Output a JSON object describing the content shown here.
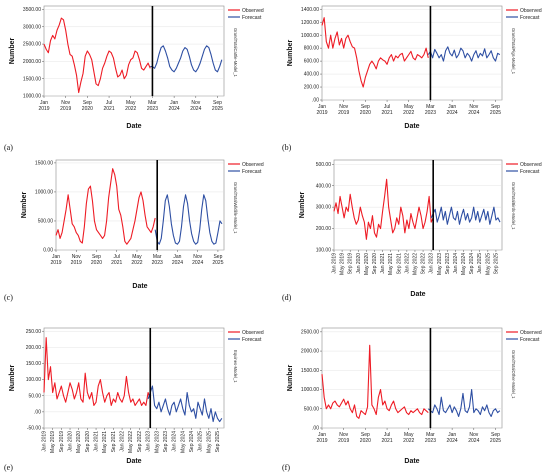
{
  "chart_data": [
    {
      "panel_label": "(a)",
      "type": "line",
      "xlabel": "Date",
      "ylabel": "Number",
      "model_label": "GrandTotalCattle-Model_1",
      "x_range": [
        "2019-01",
        "2025-12"
      ],
      "forecast_start": "2023-03",
      "x_ticks": [
        {
          "at": "2019-01",
          "label": "Jan 2019"
        },
        {
          "at": "2019-11",
          "label": "Nov 2019"
        },
        {
          "at": "2020-09",
          "label": "Sep 2020"
        },
        {
          "at": "2021-07",
          "label": "Jul 2021"
        },
        {
          "at": "2022-05",
          "label": "May 2022"
        },
        {
          "at": "2023-03",
          "label": "Mar 2023"
        },
        {
          "at": "2024-01",
          "label": "Jan 2024"
        },
        {
          "at": "2024-11",
          "label": "Nov 2024"
        },
        {
          "at": "2025-09",
          "label": "Sep 2025"
        }
      ],
      "xtick_rotated": false,
      "ylim": [
        1000,
        3600
      ],
      "y_ticks": [
        "1000.00",
        "1500.00",
        "2000.00",
        "2500.00",
        "3000.00",
        "3500.00"
      ],
      "series": [
        {
          "name": "Observed",
          "color": "#ee1c25",
          "start": "2019-01",
          "values": [
            2500,
            2350,
            2250,
            2600,
            2750,
            2650,
            2900,
            3050,
            3250,
            3200,
            2900,
            2500,
            2200,
            2150,
            1900,
            1600,
            1100,
            1400,
            1650,
            2150,
            2300,
            2200,
            2050,
            1700,
            1350,
            1300,
            1500,
            1800,
            1950,
            2150,
            2300,
            2250,
            2100,
            1800,
            1550,
            1600,
            1750,
            1500,
            1600,
            1900,
            2050,
            2100,
            2300,
            2250,
            2050,
            1800,
            1750,
            1850,
            1950,
            1800
          ]
        },
        {
          "name": "Forecast",
          "color": "#2e4fa3",
          "start": "2023-02",
          "values": [
            1850,
            1850,
            1800,
            1950,
            2200,
            2400,
            2450,
            2300,
            2100,
            1850,
            1750,
            1700,
            1800,
            1950,
            2100,
            2300,
            2400,
            2350,
            2150,
            1900,
            1750,
            1700,
            1800,
            1950,
            2150,
            2350,
            2450,
            2400,
            2200,
            1950,
            1750,
            1700,
            1850,
            2050
          ]
        }
      ]
    },
    {
      "panel_label": "(b)",
      "type": "line",
      "xlabel": "Date",
      "ylabel": "Number",
      "model_label": "GrandTotalPigs-Model_1",
      "x_range": [
        "2019-01",
        "2025-12"
      ],
      "forecast_start": "2023-03",
      "x_ticks": [
        {
          "at": "2019-01",
          "label": "Jan 2019"
        },
        {
          "at": "2019-11",
          "label": "Nov 2019"
        },
        {
          "at": "2020-09",
          "label": "Sep 2020"
        },
        {
          "at": "2021-07",
          "label": "Jul 2021"
        },
        {
          "at": "2022-05",
          "label": "May 2022"
        },
        {
          "at": "2023-03",
          "label": "Mar 2023"
        },
        {
          "at": "2024-01",
          "label": "Jan 2024"
        },
        {
          "at": "2024-11",
          "label": "Nov 2024"
        },
        {
          "at": "2025-09",
          "label": "Sep 2025"
        }
      ],
      "xtick_rotated": false,
      "ylim": [
        0,
        1450
      ],
      "y_ticks": [
        ".00",
        "200.00",
        "400.00",
        "600.00",
        "800.00",
        "1000.00",
        "1200.00",
        "1400.00"
      ],
      "series": [
        {
          "name": "Observed",
          "color": "#ee1c25",
          "start": "2019-01",
          "values": [
            1150,
            1270,
            900,
            800,
            1000,
            800,
            950,
            1050,
            850,
            950,
            800,
            950,
            1000,
            900,
            820,
            800,
            650,
            450,
            300,
            200,
            350,
            450,
            550,
            600,
            550,
            480,
            600,
            650,
            620,
            600,
            550,
            650,
            700,
            600,
            680,
            650,
            700,
            720,
            600,
            650,
            700,
            750,
            650,
            620,
            700,
            680,
            650,
            700,
            800,
            650
          ]
        },
        {
          "name": "Forecast",
          "color": "#2e4fa3",
          "start": "2023-02",
          "values": [
            700,
            750,
            650,
            780,
            720,
            650,
            700,
            600,
            760,
            820,
            720,
            680,
            770,
            650,
            700,
            800,
            760,
            650,
            720,
            680,
            600,
            700,
            760,
            650,
            720,
            680,
            790,
            650,
            700,
            760,
            650,
            600,
            720,
            700
          ]
        }
      ]
    },
    {
      "panel_label": "(c)",
      "type": "line",
      "xlabel": "Date",
      "ylabel": "Number",
      "model_label": "GrandTotalWildlife-Model_1",
      "x_range": [
        "2019-01",
        "2025-12"
      ],
      "forecast_start": "2023-03",
      "x_ticks": [
        {
          "at": "2019-01",
          "label": "Jan 2019"
        },
        {
          "at": "2019-11",
          "label": "Nov 2019"
        },
        {
          "at": "2020-09",
          "label": "Sep 2020"
        },
        {
          "at": "2021-07",
          "label": "Jul 2021"
        },
        {
          "at": "2022-05",
          "label": "May 2022"
        },
        {
          "at": "2023-03",
          "label": "Mar 2023"
        },
        {
          "at": "2024-01",
          "label": "Jan 2024"
        },
        {
          "at": "2024-11",
          "label": "Nov 2024"
        },
        {
          "at": "2025-09",
          "label": "Sep 2025"
        }
      ],
      "xtick_rotated": false,
      "ylim": [
        0,
        1550
      ],
      "y_ticks": [
        "0.00",
        "500.00",
        "1000.00",
        "1500.00"
      ],
      "series": [
        {
          "name": "Observed",
          "color": "#ee1c25",
          "start": "2019-01",
          "values": [
            250,
            350,
            200,
            300,
            500,
            700,
            950,
            700,
            450,
            400,
            300,
            250,
            150,
            120,
            400,
            800,
            1050,
            1100,
            850,
            500,
            350,
            300,
            250,
            200,
            250,
            500,
            900,
            1150,
            1400,
            1300,
            1100,
            700,
            600,
            400,
            150,
            100,
            150,
            200,
            350,
            500,
            700,
            900,
            1000,
            850,
            600,
            400,
            350,
            300,
            400,
            550
          ]
        },
        {
          "name": "Forecast",
          "color": "#2e4fa3",
          "start": "2023-02",
          "values": [
            350,
            150,
            100,
            200,
            500,
            850,
            950,
            750,
            450,
            250,
            120,
            100,
            150,
            400,
            750,
            950,
            800,
            500,
            280,
            150,
            100,
            130,
            350,
            700,
            950,
            850,
            550,
            300,
            150,
            100,
            120,
            300,
            500,
            450
          ]
        }
      ]
    },
    {
      "panel_label": "(d)",
      "type": "line",
      "xlabel": "Date",
      "ylabel": "Number",
      "model_label": "GrandTotalBirds-Model_1",
      "x_range": [
        "2019-01",
        "2025-12"
      ],
      "forecast_start": "2023-02",
      "x_ticks": [
        {
          "at": "2019-01",
          "label": "Jan 2019"
        },
        {
          "at": "2019-05",
          "label": "May 2019"
        },
        {
          "at": "2019-09",
          "label": "Sep 2019"
        },
        {
          "at": "2020-01",
          "label": "Jan 2020"
        },
        {
          "at": "2020-05",
          "label": "May 2020"
        },
        {
          "at": "2020-09",
          "label": "Sep 2020"
        },
        {
          "at": "2021-01",
          "label": "Jan 2021"
        },
        {
          "at": "2021-05",
          "label": "May 2021"
        },
        {
          "at": "2021-09",
          "label": "Sep 2021"
        },
        {
          "at": "2022-01",
          "label": "Jan 2022"
        },
        {
          "at": "2022-05",
          "label": "May 2022"
        },
        {
          "at": "2022-09",
          "label": "Sep 2022"
        },
        {
          "at": "2023-01",
          "label": "Jan 2023"
        },
        {
          "at": "2023-05",
          "label": "May 2023"
        },
        {
          "at": "2023-09",
          "label": "Sep 2023"
        },
        {
          "at": "2024-01",
          "label": "Jan 2024"
        },
        {
          "at": "2024-05",
          "label": "May 2024"
        },
        {
          "at": "2024-09",
          "label": "Sep 2024"
        },
        {
          "at": "2025-01",
          "label": "Jan 2025"
        },
        {
          "at": "2025-05",
          "label": "May 2025"
        },
        {
          "at": "2025-09",
          "label": "Sep 2025"
        }
      ],
      "xtick_rotated": true,
      "ylim": [
        100,
        520
      ],
      "y_ticks": [
        "100.00",
        "200.00",
        "300.00",
        "400.00",
        "500.00"
      ],
      "series": [
        {
          "name": "Observed",
          "color": "#ee1c25",
          "start": "2019-01",
          "values": [
            280,
            320,
            270,
            350,
            300,
            250,
            300,
            280,
            360,
            300,
            250,
            220,
            240,
            300,
            260,
            230,
            150,
            230,
            200,
            260,
            180,
            160,
            220,
            200,
            280,
            350,
            430,
            300,
            240,
            180,
            200,
            250,
            220,
            300,
            260,
            180,
            240,
            200,
            270,
            230,
            200,
            250,
            300,
            260,
            200,
            230,
            280,
            350,
            230,
            250
          ]
        },
        {
          "name": "Forecast",
          "color": "#2e4fa3",
          "start": "2023-01",
          "values": [
            250,
            270,
            290,
            230,
            260,
            300,
            240,
            280,
            220,
            260,
            300,
            250,
            240,
            280,
            220,
            260,
            290,
            240,
            270,
            230,
            250,
            300,
            240,
            280,
            230,
            260,
            290,
            240,
            280,
            220,
            260,
            300,
            240,
            250,
            230
          ]
        }
      ]
    },
    {
      "panel_label": "(e)",
      "type": "line",
      "xlabel": "Date",
      "ylabel": "Number",
      "model_label": "Equines-Model_1",
      "x_range": [
        "2019-01",
        "2025-12"
      ],
      "forecast_start": "2023-02",
      "x_ticks": [
        {
          "at": "2019-01",
          "label": "Jan 2019"
        },
        {
          "at": "2019-05",
          "label": "May 2019"
        },
        {
          "at": "2019-09",
          "label": "Sep 2019"
        },
        {
          "at": "2020-01",
          "label": "Jan 2020"
        },
        {
          "at": "2020-05",
          "label": "May 2020"
        },
        {
          "at": "2020-09",
          "label": "Sep 2020"
        },
        {
          "at": "2021-01",
          "label": "Jan 2021"
        },
        {
          "at": "2021-05",
          "label": "May 2021"
        },
        {
          "at": "2021-09",
          "label": "Sep 2021"
        },
        {
          "at": "2022-01",
          "label": "Jan 2022"
        },
        {
          "at": "2022-05",
          "label": "May 2022"
        },
        {
          "at": "2022-09",
          "label": "Sep 2022"
        },
        {
          "at": "2023-01",
          "label": "Jan 2023"
        },
        {
          "at": "2023-05",
          "label": "May 2023"
        },
        {
          "at": "2023-09",
          "label": "Sep 2023"
        },
        {
          "at": "2024-01",
          "label": "Jan 2024"
        },
        {
          "at": "2024-05",
          "label": "May 2024"
        },
        {
          "at": "2024-09",
          "label": "Sep 2024"
        },
        {
          "at": "2025-01",
          "label": "Jan 2025"
        },
        {
          "at": "2025-05",
          "label": "May 2025"
        },
        {
          "at": "2025-09",
          "label": "Sep 2025"
        }
      ],
      "xtick_rotated": true,
      "ylim": [
        -50,
        260
      ],
      "y_ticks": [
        "-50.00",
        ".00",
        "50.00",
        "100.00",
        "150.00",
        "200.00",
        "250.00"
      ],
      "series": [
        {
          "name": "Observed",
          "color": "#ee1c25",
          "start": "2019-01",
          "values": [
            60,
            230,
            100,
            140,
            60,
            90,
            40,
            60,
            80,
            50,
            30,
            60,
            90,
            70,
            40,
            60,
            90,
            40,
            30,
            120,
            60,
            40,
            60,
            20,
            30,
            80,
            100,
            60,
            30,
            50,
            60,
            20,
            40,
            30,
            60,
            40,
            30,
            50,
            110,
            60,
            30,
            40,
            20,
            30,
            40,
            20,
            30,
            20,
            60,
            40
          ]
        },
        {
          "name": "Forecast",
          "color": "#2e4fa3",
          "start": "2023-01",
          "values": [
            40,
            60,
            80,
            20,
            10,
            30,
            0,
            20,
            40,
            10,
            -10,
            20,
            30,
            0,
            20,
            40,
            10,
            -10,
            60,
            20,
            0,
            10,
            -20,
            30,
            10,
            -10,
            40,
            0,
            -20,
            10,
            -30,
            0,
            -20,
            -30,
            -20
          ]
        }
      ]
    },
    {
      "panel_label": "(f)",
      "type": "line",
      "xlabel": "Date",
      "ylabel": "Number",
      "model_label": "GrandTotalOther-Model_1",
      "x_range": [
        "2019-01",
        "2025-12"
      ],
      "forecast_start": "2023-03",
      "x_ticks": [
        {
          "at": "2019-01",
          "label": "Jan 2019"
        },
        {
          "at": "2019-11",
          "label": "Nov 2019"
        },
        {
          "at": "2020-09",
          "label": "Sep 2020"
        },
        {
          "at": "2021-07",
          "label": "Jul 2021"
        },
        {
          "at": "2022-05",
          "label": "May 2022"
        },
        {
          "at": "2023-03",
          "label": "Mar 2023"
        },
        {
          "at": "2024-01",
          "label": "Jan 2024"
        },
        {
          "at": "2024-11",
          "label": "Nov 2024"
        },
        {
          "at": "2025-09",
          "label": "Sep 2025"
        }
      ],
      "xtick_rotated": false,
      "ylim": [
        0,
        2600
      ],
      "y_ticks": [
        ".00",
        "500.00",
        "1000.00",
        "1500.00",
        "2000.00",
        "2500.00"
      ],
      "series": [
        {
          "name": "Observed",
          "color": "#ee1c25",
          "start": "2019-01",
          "values": [
            1400,
            800,
            500,
            600,
            500,
            650,
            700,
            600,
            550,
            650,
            750,
            600,
            700,
            500,
            400,
            600,
            300,
            250,
            450,
            400,
            350,
            550,
            2150,
            600,
            500,
            350,
            800,
            1000,
            600,
            700,
            500,
            450,
            600,
            700,
            500,
            400,
            450,
            500,
            550,
            400,
            350,
            450,
            400,
            450,
            500,
            400,
            350,
            500,
            450,
            400
          ]
        },
        {
          "name": "Forecast",
          "color": "#2e4fa3",
          "start": "2023-02",
          "values": [
            500,
            450,
            400,
            600,
            500,
            350,
            800,
            450,
            400,
            500,
            600,
            400,
            550,
            450,
            300,
            500,
            900,
            450,
            400,
            550,
            1000,
            400,
            500,
            450,
            350,
            550,
            450,
            600,
            400,
            300,
            450,
            500,
            400,
            450
          ]
        }
      ]
    }
  ]
}
